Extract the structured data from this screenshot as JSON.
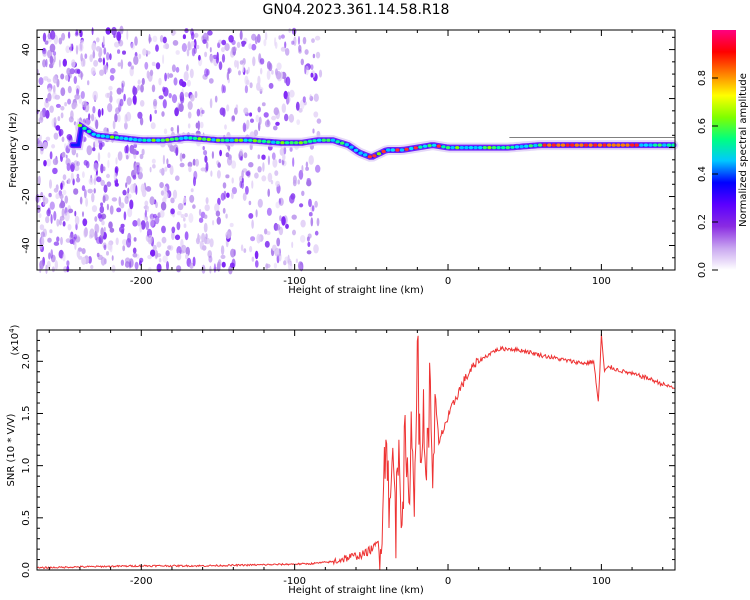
{
  "title": "GN04.2023.361.14.58.R18",
  "chart_data": [
    {
      "type": "heatmap",
      "xlabel": "Height of straight line (km)",
      "ylabel": "Frequency (Hz)",
      "xlim": [
        -268,
        148
      ],
      "ylim": [
        -50,
        48
      ],
      "xticks": [
        -200,
        -100,
        0,
        100
      ],
      "yticks": [
        -40,
        -20,
        0,
        20,
        40
      ],
      "grid": false,
      "ridge_line": {
        "x": [
          -240,
          -230,
          -215,
          -200,
          -185,
          -170,
          -150,
          -130,
          -110,
          -95,
          -85,
          -75,
          -65,
          -58,
          -50,
          -40,
          -30,
          -20,
          -10,
          0,
          20,
          40,
          60,
          80,
          100,
          120,
          148
        ],
        "y": [
          9,
          5,
          4,
          3,
          3,
          4,
          3,
          3,
          2,
          2,
          3,
          3,
          1,
          -2,
          -4,
          -1,
          -1,
          0,
          1,
          0,
          0,
          0,
          1,
          1,
          1,
          1,
          1
        ]
      },
      "colorbar": {
        "label": "Normalized spectral amplitude",
        "range": [
          0.0,
          1.0
        ],
        "ticks": [
          "0.0",
          "0.2",
          "0.4",
          "0.6",
          "0.8"
        ],
        "colors": [
          "#ffffff",
          "#c9a6f0",
          "#8a2be2",
          "#5b00ff",
          "#0000ff",
          "#00c8ff",
          "#00ff80",
          "#7fff00",
          "#ffff00",
          "#ff8000",
          "#ff0000",
          "#ff0080"
        ]
      }
    },
    {
      "type": "line",
      "xlabel": "Height of straight line (km)",
      "ylabel": "SNR (10 * V/V)",
      "y_multiplier": "(x10",
      "y_multiplier_exp": "4",
      "y_multiplier_close": ")",
      "xlim": [
        -268,
        148
      ],
      "ylim": [
        0.0,
        2.3
      ],
      "xticks": [
        -200,
        -100,
        0,
        100
      ],
      "yticks": [
        "0.0",
        "0.5",
        "1.0",
        "1.5",
        "2.0"
      ],
      "grid": false,
      "color": "#ee3333",
      "x": [
        -268,
        -240,
        -200,
        -160,
        -120,
        -90,
        -75,
        -65,
        -55,
        -48,
        -44,
        -42,
        -40,
        -38,
        -36,
        -34,
        -32,
        -30,
        -28,
        -26,
        -24,
        -22,
        -20,
        -18,
        -16,
        -14,
        -12,
        -10,
        -8,
        -6,
        -4,
        -2,
        0,
        5,
        10,
        15,
        20,
        25,
        30,
        35,
        40,
        50,
        60,
        70,
        80,
        90,
        95,
        98,
        100,
        102,
        105,
        110,
        120,
        130,
        140,
        148
      ],
      "y": [
        0.02,
        0.03,
        0.04,
        0.04,
        0.05,
        0.06,
        0.08,
        0.12,
        0.15,
        0.22,
        0.3,
        0.8,
        1.45,
        0.4,
        1.15,
        0.45,
        1.3,
        0.55,
        1.2,
        0.6,
        1.35,
        0.7,
        2.3,
        0.8,
        1.55,
        0.9,
        1.7,
        1.05,
        1.6,
        1.2,
        1.3,
        1.4,
        1.45,
        1.65,
        1.8,
        1.92,
        2.0,
        2.05,
        2.1,
        2.12,
        2.12,
        2.1,
        2.06,
        2.03,
        2.0,
        1.98,
        2.0,
        1.6,
        2.25,
        1.9,
        1.95,
        1.92,
        1.88,
        1.84,
        1.78,
        1.74
      ]
    }
  ]
}
